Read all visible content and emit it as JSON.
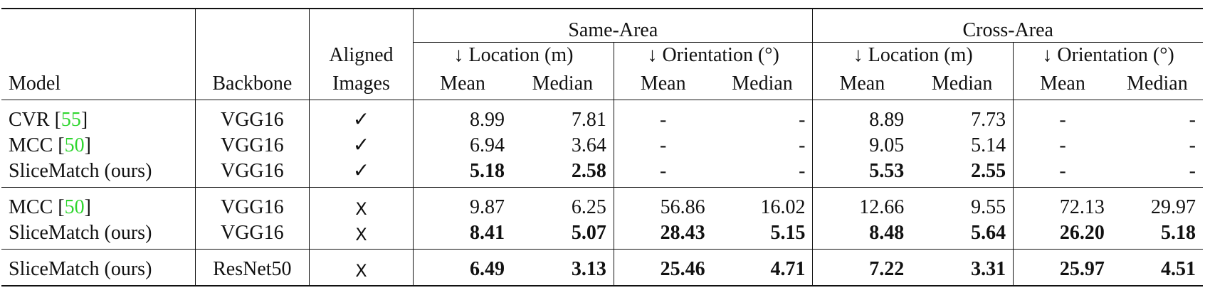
{
  "table": {
    "header": {
      "model": "Model",
      "backbone": "Backbone",
      "aligned_line1": "Aligned",
      "aligned_line2": "Images",
      "same_area": "Same-Area",
      "cross_area": "Cross-Area",
      "location": "↓ Location (m)",
      "orientation": "↓ Orientation (°)",
      "mean": "Mean",
      "median": "Median"
    },
    "rows": [
      {
        "model": "CVR",
        "cite": "55",
        "backbone": "VGG16",
        "aligned": "✓",
        "sa_loc_mean": "8.99",
        "sa_loc_median": "7.81",
        "sa_ori_mean": "-",
        "sa_ori_median": "-",
        "ca_loc_mean": "8.89",
        "ca_loc_median": "7.73",
        "ca_ori_mean": "-",
        "ca_ori_median": "-"
      },
      {
        "model": "MCC",
        "cite": "50",
        "backbone": "VGG16",
        "aligned": "✓",
        "sa_loc_mean": "6.94",
        "sa_loc_median": "3.64",
        "sa_ori_mean": "-",
        "sa_ori_median": "-",
        "ca_loc_mean": "9.05",
        "ca_loc_median": "5.14",
        "ca_ori_mean": "-",
        "ca_ori_median": "-"
      },
      {
        "model": "SliceMatch (ours)",
        "cite": "",
        "backbone": "VGG16",
        "aligned": "✓",
        "sa_loc_mean": "5.18",
        "sa_loc_median": "2.58",
        "sa_ori_mean": "-",
        "sa_ori_median": "-",
        "ca_loc_mean": "5.53",
        "ca_loc_median": "2.55",
        "ca_ori_mean": "-",
        "ca_ori_median": "-"
      },
      {
        "model": "MCC",
        "cite": "50",
        "backbone": "VGG16",
        "aligned": "X",
        "sa_loc_mean": "9.87",
        "sa_loc_median": "6.25",
        "sa_ori_mean": "56.86",
        "sa_ori_median": "16.02",
        "ca_loc_mean": "12.66",
        "ca_loc_median": "9.55",
        "ca_ori_mean": "72.13",
        "ca_ori_median": "29.97"
      },
      {
        "model": "SliceMatch (ours)",
        "cite": "",
        "backbone": "VGG16",
        "aligned": "X",
        "sa_loc_mean": "8.41",
        "sa_loc_median": "5.07",
        "sa_ori_mean": "28.43",
        "sa_ori_median": "5.15",
        "ca_loc_mean": "8.48",
        "ca_loc_median": "5.64",
        "ca_ori_mean": "26.20",
        "ca_ori_median": "5.18"
      },
      {
        "model": "SliceMatch (ours)",
        "cite": "",
        "backbone": "ResNet50",
        "aligned": "X",
        "sa_loc_mean": "6.49",
        "sa_loc_median": "3.13",
        "sa_ori_mean": "25.46",
        "sa_ori_median": "4.71",
        "ca_loc_mean": "7.22",
        "ca_loc_median": "3.31",
        "ca_ori_mean": "25.97",
        "ca_ori_median": "4.51"
      }
    ]
  }
}
